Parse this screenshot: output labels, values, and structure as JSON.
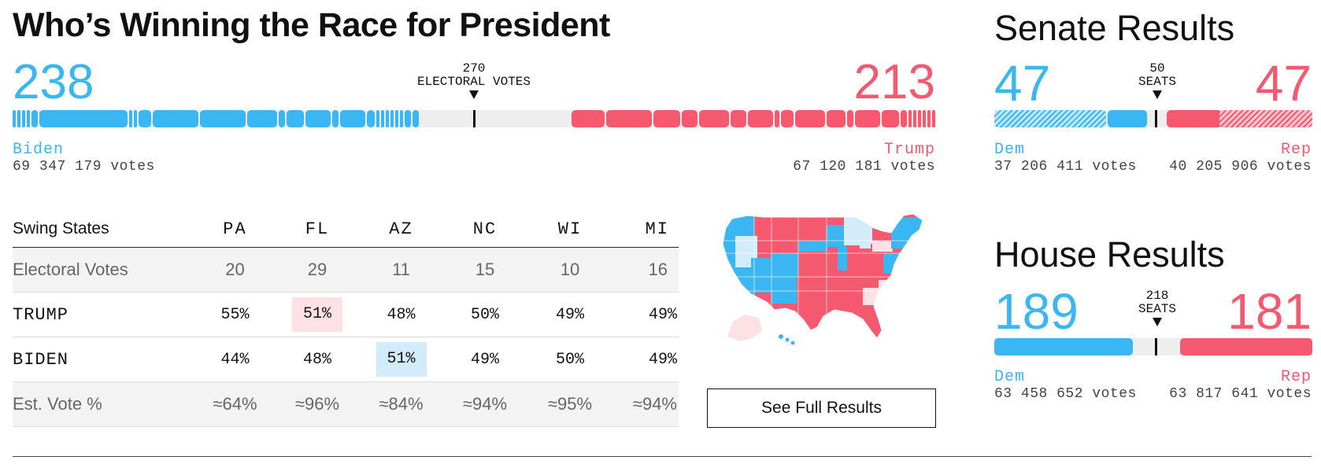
{
  "president": {
    "title": "Who’s Winning the Race for President",
    "threshold_value": "270",
    "threshold_label": "ELECTORAL VOTES",
    "biden": {
      "ev": "238",
      "name": "Biden",
      "votes": "69 347 179 votes",
      "fraction": 0.4424
    },
    "trump": {
      "ev": "213",
      "name": "Trump",
      "votes": "67 120 181 votes",
      "fraction": 0.3959
    }
  },
  "swing": {
    "header": "Swing States",
    "states": [
      "PA",
      "FL",
      "AZ",
      "NC",
      "WI",
      "MI"
    ],
    "rows": [
      {
        "label": "Electoral Votes",
        "values": [
          "20",
          "29",
          "11",
          "15",
          "10",
          "16"
        ]
      },
      {
        "label": "TRUMP",
        "values": [
          "55%",
          "51%",
          "48%",
          "50%",
          "49%",
          "49%"
        ]
      },
      {
        "label": "BIDEN",
        "values": [
          "44%",
          "48%",
          "51%",
          "49%",
          "50%",
          "49%"
        ]
      },
      {
        "label": "Est. Vote %",
        "values": [
          "≈64%",
          "≈96%",
          "≈84%",
          "≈94%",
          "≈95%",
          "≈94%"
        ]
      }
    ]
  },
  "button": {
    "label": "See Full Results"
  },
  "senate": {
    "title": "Senate Results",
    "threshold_value": "50",
    "threshold_label": "SEATS",
    "dem": {
      "seats": "47",
      "name": "Dem",
      "votes": "37 206 411 votes"
    },
    "rep": {
      "seats": "47",
      "name": "Rep",
      "votes": "40 205 906 votes"
    }
  },
  "house": {
    "title": "House Results",
    "threshold_value": "218",
    "threshold_label": "SEATS",
    "dem": {
      "seats": "189",
      "name": "Dem",
      "votes": "63 458 652 votes",
      "fraction": 0.4345
    },
    "rep": {
      "seats": "181",
      "name": "Rep",
      "votes": "63 817 641 votes",
      "fraction": 0.4161
    }
  },
  "colors": {
    "dem": "#3ab6f3",
    "rep": "#f4596f",
    "dem_light": "#d3ecfb",
    "rep_light": "#fde1e5",
    "undecided": "#eeeeee"
  },
  "map": {
    "icon": "us-map-icon"
  }
}
